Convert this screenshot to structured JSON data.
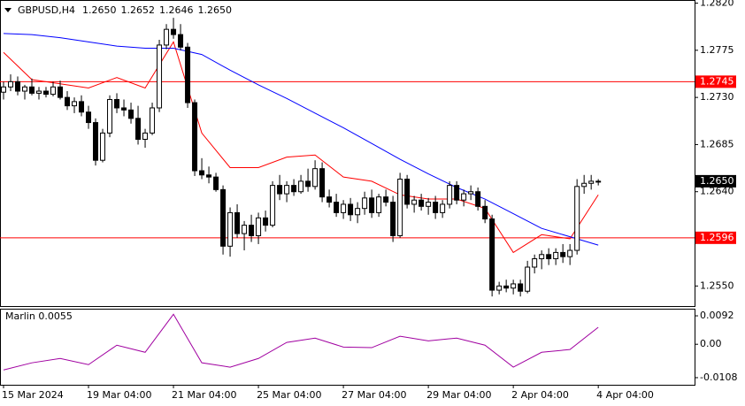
{
  "chart_data": [
    {
      "type": "candlestick",
      "title": "GBPUSD,H4",
      "quote": [
        "1.2650",
        "1.2652",
        "1.2646",
        "1.2650"
      ],
      "xlim": [
        -0.5,
        97.6
      ],
      "ylim": [
        1.253,
        1.2823
      ],
      "yticks": [
        {
          "value": 1.282,
          "label": "1.2820"
        },
        1.2775,
        {
          "value": 1.273,
          "label": "1.2730"
        },
        1.2685,
        {
          "value": 1.264,
          "label": "1.2640"
        },
        {
          "value": 1.255,
          "label": "1.2550"
        }
      ],
      "up_color": "#ffffff",
      "down_color": "#000000",
      "edge_color": "#000000",
      "open": [
        1.2735,
        1.274,
        1.2745,
        1.2736,
        1.274,
        1.2734,
        1.2736,
        1.2733,
        1.274,
        1.273,
        1.2722,
        1.2726,
        1.2716,
        1.2706,
        1.267,
        1.2696,
        1.2728,
        1.272,
        1.2718,
        1.271,
        1.269,
        1.2696,
        1.272,
        1.278,
        1.2795,
        1.279,
        1.2778,
        1.2725,
        1.266,
        1.2656,
        1.2654,
        1.2642,
        1.2588,
        1.262,
        1.26,
        1.2608,
        1.2598,
        1.2615,
        1.2608,
        1.2646,
        1.2638,
        1.2646,
        1.264,
        1.265,
        1.2645,
        1.2662,
        1.2635,
        1.263,
        1.262,
        1.2628,
        1.2618,
        1.2624,
        1.2634,
        1.262,
        1.2635,
        1.263,
        1.2598,
        1.2652,
        1.2628,
        1.2632,
        1.2626,
        1.263,
        1.262,
        1.2628,
        1.2646,
        1.2632,
        1.2638,
        1.264,
        1.2626,
        1.2614,
        1.2546,
        1.255,
        1.2548,
        1.2552,
        1.2545,
        1.2568,
        1.2576,
        1.258,
        1.2576,
        1.2582,
        1.2578,
        1.2584,
        1.2645,
        1.2648,
        1.265
      ],
      "high": [
        1.2745,
        1.2752,
        1.275,
        1.2742,
        1.2748,
        1.274,
        1.274,
        1.2745,
        1.2746,
        1.2736,
        1.273,
        1.2732,
        1.2722,
        1.271,
        1.27,
        1.2732,
        1.2734,
        1.2728,
        1.2725,
        1.2722,
        1.27,
        1.2725,
        1.2785,
        1.28,
        1.2806,
        1.28,
        1.2782,
        1.2728,
        1.2672,
        1.2664,
        1.2658,
        1.2646,
        1.2625,
        1.2628,
        1.2612,
        1.2618,
        1.262,
        1.2622,
        1.265,
        1.2656,
        1.265,
        1.2652,
        1.2656,
        1.2662,
        1.267,
        1.2668,
        1.2642,
        1.2638,
        1.2632,
        1.2634,
        1.263,
        1.264,
        1.2642,
        1.2638,
        1.2642,
        1.2636,
        1.2658,
        1.2656,
        1.2636,
        1.2638,
        1.2634,
        1.2636,
        1.2632,
        1.265,
        1.265,
        1.2642,
        1.2646,
        1.2644,
        1.2632,
        1.2618,
        1.2554,
        1.2556,
        1.2556,
        1.2556,
        1.2574,
        1.258,
        1.2584,
        1.2586,
        1.2586,
        1.259,
        1.259,
        1.2652,
        1.2656,
        1.2656,
        1.2652
      ],
      "low": [
        1.2728,
        1.2736,
        1.2732,
        1.2728,
        1.2732,
        1.2728,
        1.273,
        1.2731,
        1.2728,
        1.2718,
        1.2715,
        1.2712,
        1.27,
        1.2665,
        1.2668,
        1.2692,
        1.2715,
        1.2712,
        1.2705,
        1.2685,
        1.2682,
        1.2694,
        1.2716,
        1.2776,
        1.2786,
        1.2775,
        1.272,
        1.2655,
        1.2652,
        1.2648,
        1.264,
        1.258,
        1.2578,
        1.2596,
        1.2584,
        1.2592,
        1.259,
        1.2602,
        1.2606,
        1.2632,
        1.263,
        1.2636,
        1.2638,
        1.264,
        1.2642,
        1.263,
        1.2625,
        1.2616,
        1.2614,
        1.2612,
        1.261,
        1.2618,
        1.2615,
        1.2616,
        1.2626,
        1.2592,
        1.2596,
        1.2624,
        1.262,
        1.2622,
        1.2618,
        1.2614,
        1.2615,
        1.2624,
        1.2628,
        1.2626,
        1.2632,
        1.2622,
        1.261,
        1.254,
        1.2542,
        1.2544,
        1.2542,
        1.254,
        1.2543,
        1.2562,
        1.2566,
        1.257,
        1.257,
        1.2572,
        1.257,
        1.258,
        1.2638,
        1.2642,
        1.2646
      ],
      "close": [
        1.274,
        1.2745,
        1.2736,
        1.274,
        1.2734,
        1.2736,
        1.2733,
        1.274,
        1.273,
        1.2722,
        1.2726,
        1.2716,
        1.2706,
        1.267,
        1.2696,
        1.2728,
        1.272,
        1.2718,
        1.271,
        1.269,
        1.2696,
        1.272,
        1.278,
        1.2795,
        1.279,
        1.2778,
        1.2725,
        1.266,
        1.2656,
        1.2654,
        1.2642,
        1.2588,
        1.262,
        1.26,
        1.2608,
        1.2598,
        1.2615,
        1.2608,
        1.2646,
        1.2638,
        1.2646,
        1.264,
        1.265,
        1.2645,
        1.2662,
        1.2635,
        1.263,
        1.262,
        1.2628,
        1.2618,
        1.2624,
        1.2634,
        1.262,
        1.2635,
        1.263,
        1.2598,
        1.2652,
        1.2628,
        1.2632,
        1.2626,
        1.263,
        1.262,
        1.2628,
        1.2646,
        1.2632,
        1.2638,
        1.264,
        1.2626,
        1.2614,
        1.2546,
        1.255,
        1.2548,
        1.2552,
        1.2545,
        1.2568,
        1.2576,
        1.258,
        1.2576,
        1.2582,
        1.2578,
        1.2584,
        1.2645,
        1.2648,
        1.265,
        1.265
      ],
      "series": [
        {
          "color": "#ff0000",
          "x": [
            0,
            4,
            8,
            12,
            16,
            20,
            24,
            28,
            32,
            36,
            40,
            44,
            48,
            52,
            56,
            60,
            64,
            68,
            72,
            76,
            80,
            84
          ],
          "values": [
            1.2773,
            1.2747,
            1.2743,
            1.2739,
            1.2749,
            1.2739,
            1.2783,
            1.2696,
            1.2663,
            1.2663,
            1.2673,
            1.2675,
            1.2654,
            1.265,
            1.2637,
            1.2633,
            1.2633,
            1.2624,
            1.2582,
            1.2599,
            1.2595,
            1.2637
          ]
        },
        {
          "color": "#0000ff",
          "x": [
            0,
            4,
            8,
            12,
            16,
            20,
            24,
            28,
            32,
            36,
            40,
            44,
            48,
            52,
            56,
            60,
            64,
            68,
            72,
            76,
            80,
            84
          ],
          "values": [
            1.2791,
            1.279,
            1.2787,
            1.2783,
            1.2779,
            1.2777,
            1.2777,
            1.2771,
            1.2756,
            1.2742,
            1.2729,
            1.2715,
            1.2701,
            1.2686,
            1.2671,
            1.2657,
            1.2644,
            1.2633,
            1.2619,
            1.2605,
            1.2597,
            1.2589
          ]
        }
      ],
      "levels": [
        {
          "value": 1.2745,
          "label": "1.2745",
          "color": "#ff0000"
        },
        {
          "value": 1.2596,
          "label": "1.2596",
          "color": "#ff0000"
        }
      ],
      "current_price": {
        "value": 1.265,
        "label": "1.2650",
        "color": "#000000"
      }
    },
    {
      "type": "line",
      "title": "Marlin 0.0055",
      "xlim": [
        -0.5,
        97.6
      ],
      "ylim": [
        -0.0131,
        0.0115
      ],
      "yticks": [
        0.0092,
        {
          "value": 0,
          "label": "0.00"
        },
        -0.0108
      ],
      "xticks": [
        {
          "value": 0,
          "label": "15 Mar 2024"
        },
        {
          "value": 12,
          "label": "19 Mar 04:00"
        },
        {
          "value": 24,
          "label": "21 Mar 04:00"
        },
        {
          "value": 36,
          "label": "25 Mar 04:00"
        },
        {
          "value": 48,
          "label": "27 Mar 04:00"
        },
        {
          "value": 60,
          "label": "29 Mar 04:00"
        },
        {
          "value": 72,
          "label": "2 Apr 04:00"
        },
        {
          "value": 84,
          "label": "4 Apr 04:00"
        }
      ],
      "series": [
        {
          "color": "#a000a0",
          "x": [
            0,
            4,
            8,
            12,
            16,
            20,
            24,
            28,
            32,
            36,
            40,
            44,
            48,
            52,
            56,
            60,
            64,
            68,
            72,
            76,
            80,
            84
          ],
          "values": [
            -0.0083,
            -0.006,
            -0.0046,
            -0.0066,
            -0.0003,
            -0.0026,
            0.0097,
            -0.006,
            -0.0074,
            -0.0046,
            0.0006,
            0.002,
            -0.0009,
            -0.0011,
            0.0026,
            0.0011,
            0.002,
            -0.0003,
            -0.0074,
            -0.0026,
            -0.0017,
            0.0055
          ]
        }
      ]
    }
  ]
}
